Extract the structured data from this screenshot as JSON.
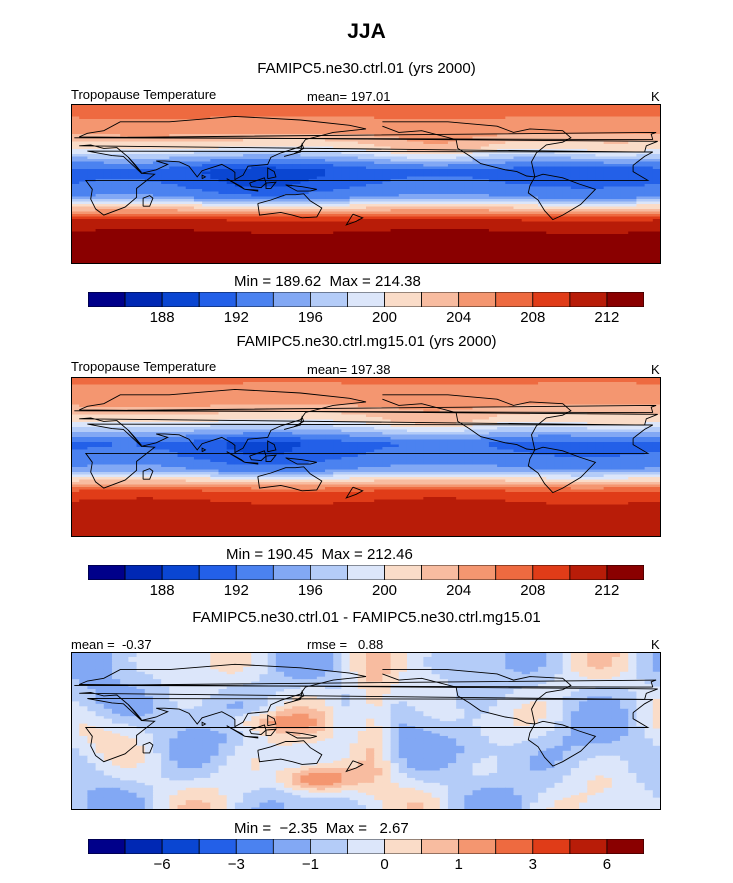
{
  "figure": {
    "title": "JJA"
  },
  "colors": [
    "#00008a",
    "#0028b4",
    "#0a46d2",
    "#2360e8",
    "#4b82f0",
    "#82a8f4",
    "#b4ccf8",
    "#dce6fa",
    "#fadcc8",
    "#f8bca0",
    "#f49670",
    "#ee6a40",
    "#e03c18",
    "#b81c08",
    "#8a0000"
  ],
  "chart_data": [
    {
      "type": "heatmap",
      "title": "FAMIPC5.ne30.ctrl.01 (yrs 2000)",
      "field_label": "Tropopause Temperature",
      "mean_label": "mean=",
      "mean": "197.01",
      "units": "K",
      "min_label": "Min =",
      "min": "189.62",
      "max_label": "Max =",
      "max": "214.38",
      "levels": [
        186,
        188,
        190,
        192,
        194,
        196,
        198,
        200,
        202,
        204,
        206,
        208,
        210,
        212
      ],
      "colorbar_labels": [
        "188",
        "192",
        "196",
        "200",
        "204",
        "208",
        "212"
      ],
      "x_range": [
        0,
        360
      ],
      "y_range": [
        -90,
        90
      ],
      "zonal_profile": {
        "lat": [
          -90,
          -60,
          -40,
          -25,
          -15,
          0,
          15,
          25,
          40,
          60,
          90
        ],
        "value": [
          214,
          213,
          210,
          201,
          194,
          192,
          191,
          194,
          200,
          205,
          207
        ]
      }
    },
    {
      "type": "heatmap",
      "title": "FAMIPC5.ne30.ctrl.mg15.01 (yrs 2000)",
      "field_label": "Tropopause Temperature",
      "mean_label": "mean=",
      "mean": "197.38",
      "units": "K",
      "min_label": "Min =",
      "min": "190.45",
      "max_label": "Max =",
      "max": "212.46",
      "levels": [
        186,
        188,
        190,
        192,
        194,
        196,
        198,
        200,
        202,
        204,
        206,
        208,
        210,
        212
      ],
      "colorbar_labels": [
        "188",
        "192",
        "196",
        "200",
        "204",
        "208",
        "212"
      ],
      "x_range": [
        0,
        360
      ],
      "y_range": [
        -90,
        90
      ],
      "zonal_profile": {
        "lat": [
          -90,
          -60,
          -40,
          -25,
          -15,
          0,
          15,
          25,
          40,
          60,
          90
        ],
        "value": [
          212,
          211,
          209,
          201,
          194.5,
          192.5,
          191.5,
          194.5,
          200,
          204.5,
          206.5
        ]
      }
    },
    {
      "type": "heatmap",
      "title": "FAMIPC5.ne30.ctrl.01 - FAMIPC5.ne30.ctrl.mg15.01",
      "mean_label": "mean =",
      "mean": "-0.37",
      "rmse_label": "rmse =",
      "rmse": "0.88",
      "units": "K",
      "min_label": "Min =",
      "min": "−2.35",
      "max_label": "Max =",
      "max": "2.67",
      "levels": [
        -8,
        -6,
        -4,
        -3,
        -2,
        -1,
        -0.5,
        0,
        0.5,
        1,
        2,
        3,
        4,
        6
      ],
      "colorbar_labels": [
        "−6",
        "−3",
        "−1",
        "0",
        "1",
        "3",
        "6"
      ],
      "x_range": [
        0,
        360
      ],
      "y_range": [
        -90,
        90
      ]
    }
  ]
}
